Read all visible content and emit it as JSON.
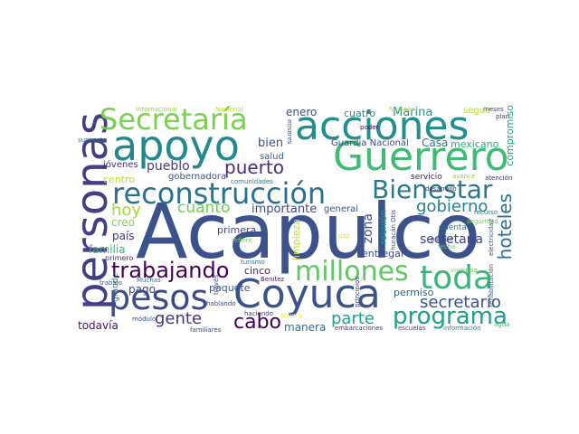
{
  "word_cloud": {
    "words": [
      {
        "text": "Acapulco",
        "color": "#3b528b"
      },
      {
        "text": "personas",
        "color": "#433e85"
      },
      {
        "text": "apoyo",
        "color": "#23898e"
      },
      {
        "text": "acciones",
        "color": "#218f8d"
      },
      {
        "text": "Guerrero",
        "color": "#3fbc73"
      },
      {
        "text": "Secretaría",
        "color": "#7ad151"
      },
      {
        "text": "reconstrucción",
        "color": "#2c728e"
      },
      {
        "text": "Bienestar",
        "color": "#2a788e"
      },
      {
        "text": "Coyuca",
        "color": "#3b528b"
      },
      {
        "text": "toda",
        "color": "#35b779"
      },
      {
        "text": "pesos",
        "color": "#3e4989"
      },
      {
        "text": "millones",
        "color": "#5ec962"
      },
      {
        "text": "trabajando",
        "color": "#440154"
      },
      {
        "text": "programa",
        "color": "#1f9e89"
      },
      {
        "text": "puerto",
        "color": "#472d7b"
      },
      {
        "text": "gobierno",
        "color": "#26828e"
      },
      {
        "text": "hoteles",
        "color": "#2c728e"
      },
      {
        "text": "secretario",
        "color": "#3b528b"
      },
      {
        "text": "cabo",
        "color": "#440154"
      },
      {
        "text": "hoy",
        "color": "#a5db36"
      },
      {
        "text": "cuanto",
        "color": "#6ece58"
      },
      {
        "text": "gente",
        "color": "#46327e"
      },
      {
        "text": "parte",
        "color": "#1fa187"
      },
      {
        "text": "zona",
        "color": "#3e4989"
      },
      {
        "text": "secretaria",
        "color": "#414487"
      },
      {
        "text": "Marina",
        "color": "#1f9e89"
      },
      {
        "text": "enero",
        "color": "#3e4989"
      },
      {
        "text": "cuatro",
        "color": "#25848e"
      },
      {
        "text": "seguir",
        "color": "#b5de2b"
      },
      {
        "text": "compromiso",
        "color": "#20a386"
      },
      {
        "text": "bien",
        "color": "#3b528b"
      },
      {
        "text": "Guardia Nacional",
        "color": "#3e4989"
      },
      {
        "text": "Casa",
        "color": "#2a788e"
      },
      {
        "text": "mexicano",
        "color": "#27ad81"
      },
      {
        "text": "pueblo",
        "color": "#433e85"
      },
      {
        "text": "jóvenes",
        "color": "#472f7d"
      },
      {
        "text": "salud",
        "color": "#38588c"
      },
      {
        "text": "gobernadora",
        "color": "#3b528b"
      },
      {
        "text": "centro",
        "color": "#c2df23"
      },
      {
        "text": "servicio",
        "color": "#481a6c"
      },
      {
        "text": "creo",
        "color": "#84d44b"
      },
      {
        "text": "importante",
        "color": "#3e4989"
      },
      {
        "text": "general",
        "color": "#3b528b"
      },
      {
        "text": "reunión",
        "color": "#1fa187"
      },
      {
        "text": "país",
        "color": "#46327e"
      },
      {
        "text": "familia",
        "color": "#35b779"
      },
      {
        "text": "primera",
        "color": "#3e4989"
      },
      {
        "text": "limpieza",
        "color": "#bddf26"
      },
      {
        "text": "entregar",
        "color": "#3e4989"
      },
      {
        "text": "cuenta",
        "color": "#2c728e"
      },
      {
        "text": "pago",
        "color": "#3e4989"
      },
      {
        "text": "paquete",
        "color": "#38588c"
      },
      {
        "text": "cinco",
        "color": "#482878"
      },
      {
        "text": "permiso",
        "color": "#33638d"
      },
      {
        "text": "todavía",
        "color": "#481467"
      },
      {
        "text": "manera",
        "color": "#2d708e"
      },
      {
        "text": "grande",
        "color": "#2a788e"
      },
      {
        "text": "internacional",
        "color": "#8fd744"
      },
      {
        "text": "Nacional",
        "color": "#b8de29"
      },
      {
        "text": "huracán",
        "color": "#a8db34"
      },
      {
        "text": "meses",
        "color": "#3e4989"
      },
      {
        "text": "plan",
        "color": "#453781"
      },
      {
        "text": "supuesto",
        "color": "#2c728e"
      },
      {
        "text": "enseres",
        "color": "#365c8d"
      },
      {
        "text": "poder",
        "color": "#440154"
      },
      {
        "text": "avance",
        "color": "#8bd646"
      },
      {
        "text": "atención",
        "color": "#472d7b"
      },
      {
        "text": "comunidades",
        "color": "#2a788e"
      },
      {
        "text": "desarrollo",
        "color": "#482475"
      },
      {
        "text": "recurso",
        "color": "#2c728e"
      },
      {
        "text": "huracán Otis",
        "color": "#3e4989"
      },
      {
        "text": "parque",
        "color": "#3b528b"
      },
      {
        "text": "seguridad",
        "color": "#6ece58"
      },
      {
        "text": "electricidad",
        "color": "#3b528b"
      },
      {
        "text": "refiere",
        "color": "#7ad151"
      },
      {
        "text": "turismo",
        "color": "#2d708e"
      },
      {
        "text": "hablando",
        "color": "#404688"
      },
      {
        "text": "principios",
        "color": "#453781"
      },
      {
        "text": "paz",
        "color": "#d2e21b"
      },
      {
        "text": "fecha",
        "color": "#5ec962"
      },
      {
        "text": "vivienda",
        "color": "#6ece58"
      },
      {
        "text": "trabajo",
        "color": "#3b528b"
      },
      {
        "text": "Muchas",
        "color": "#2a788e"
      },
      {
        "text": "Benítez",
        "color": "#482475"
      },
      {
        "text": "rehabilitación",
        "color": "#33638d"
      },
      {
        "text": "información",
        "color": "#2a788e"
      },
      {
        "text": "agua",
        "color": "#4ac16d"
      },
      {
        "text": "escuelas",
        "color": "#404688"
      },
      {
        "text": "embarcaciones",
        "color": "#453781"
      },
      {
        "text": "señora",
        "color": "#fde725"
      },
      {
        "text": "haciendo",
        "color": "#433e85"
      },
      {
        "text": "familiares",
        "color": "#3e4989"
      },
      {
        "text": "módulo",
        "color": "#3b528b"
      },
      {
        "text": "través",
        "color": "#3e4989"
      },
      {
        "text": "primero",
        "color": "#472d7b"
      }
    ]
  }
}
